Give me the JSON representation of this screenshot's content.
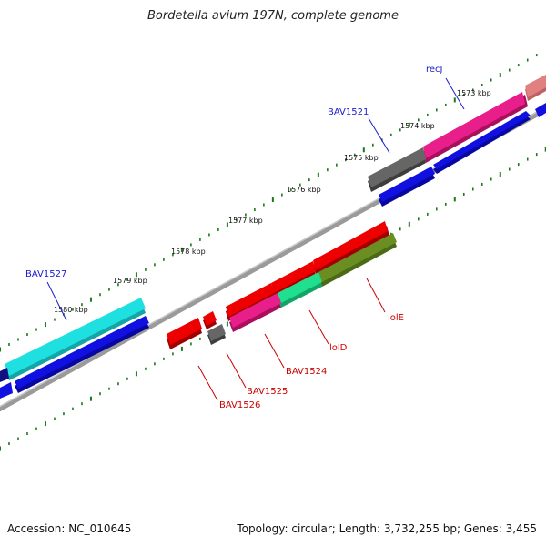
{
  "title": "Bordetella avium 197N, complete genome",
  "footer": {
    "accession": "Accession: NC_010645",
    "summary": "Topology: circular; Length: 3,732,255 bp; Genes: 3,455"
  },
  "ticks": [
    "1573 kbp",
    "1574 kbp",
    "1575 kbp",
    "1576 kbp",
    "1577 kbp",
    "1578 kbp",
    "1579 kbp",
    "1580 kbp"
  ],
  "genes_forward": [
    {
      "label": "recJ"
    },
    {
      "label": "BAV1521"
    },
    {
      "label": "BAV1527"
    }
  ],
  "genes_reverse": [
    {
      "label": "lolE"
    },
    {
      "label": "lolD"
    },
    {
      "label": "BAV1524"
    },
    {
      "label": "BAV1525"
    },
    {
      "label": "BAV1526"
    }
  ],
  "colors": {
    "tick_green": "#1a7a1a",
    "backbone": "#808080",
    "cyan": "#1ee0e0",
    "blue": "#1010e0",
    "magenta": "#e81e8a",
    "gray": "#666666",
    "red": "#ee0000",
    "olive": "#6b8e23",
    "teal": "#20e090",
    "salmon": "#e08080"
  }
}
